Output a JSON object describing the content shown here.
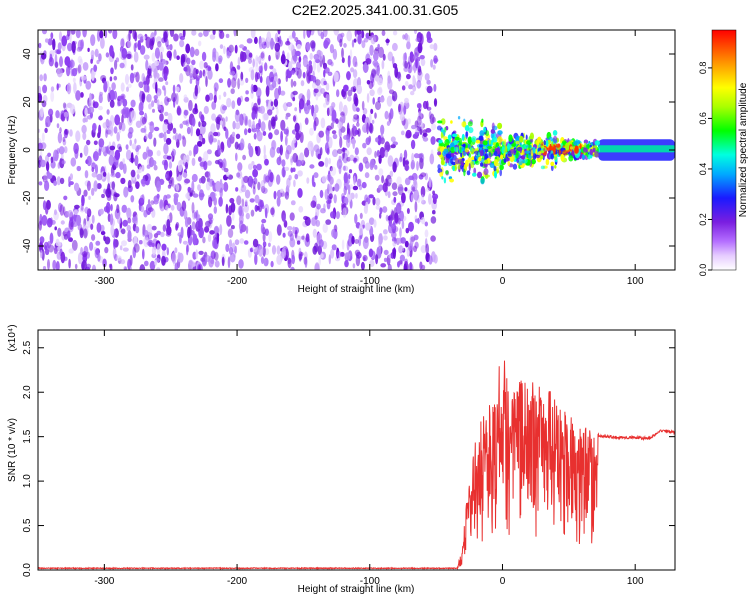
{
  "title": "C2E2.2025.341.00.31.G05",
  "colors": {
    "spectrogram_point": "#7a1ee0",
    "snr_line": "#e8302f",
    "axis": "#000000"
  },
  "chart_data": [
    {
      "type": "heatmap",
      "xlabel": "Height of straight line (km)",
      "ylabel": "Frequency (Hz)",
      "xlim": [
        -350,
        130
      ],
      "ylim": [
        -50,
        50
      ],
      "xticks": [
        -300,
        -200,
        -100,
        0,
        100
      ],
      "yticks": [
        -40,
        -20,
        0,
        20,
        40
      ],
      "colorbar": {
        "label": "Normalized spectral amplitude",
        "range": [
          0,
          0.95
        ],
        "ticks": [
          0.0,
          0.2,
          0.4,
          0.6,
          0.8
        ],
        "colormap": "rainbow (white → magenta → blue → cyan → green → yellow → red)"
      },
      "features": [
        {
          "name": "noise",
          "x_range": [
            -350,
            -50
          ],
          "y_range": [
            -50,
            50
          ],
          "amplitude": "~0.1"
        },
        {
          "name": "signal",
          "x_range": [
            -48,
            130
          ],
          "center_frequency": 0,
          "amplitude_range": [
            0.1,
            0.9
          ],
          "peak_x": 45
        }
      ],
      "grid": false
    },
    {
      "type": "line",
      "xlabel": "Height of straight line (km)",
      "ylabel": "SNR (10 * v/v)",
      "y_scale_label": "(x10⁴)",
      "xlim": [
        -350,
        130
      ],
      "ylim": [
        0,
        2.7
      ],
      "xticks": [
        -300,
        -200,
        -100,
        0,
        100
      ],
      "yticks": [
        0.0,
        0.5,
        1.0,
        1.5,
        2.0,
        2.5
      ],
      "series": [
        {
          "x": [
            -350,
            -34,
            -30,
            -26,
            -20,
            -15,
            -10,
            -5,
            0,
            5,
            10,
            15,
            20,
            25,
            30,
            35,
            40,
            45,
            50,
            55,
            60,
            65,
            70,
            72,
            75,
            80,
            90,
            100,
            110,
            120,
            125,
            130
          ],
          "y": [
            0.02,
            0.02,
            0.3,
            0.95,
            1.5,
            1.75,
            1.9,
            2.1,
            2.5,
            2.2,
            2.0,
            2.3,
            2.1,
            2.15,
            2.05,
            2.05,
            1.9,
            1.85,
            1.8,
            1.7,
            1.65,
            1.6,
            1.55,
            1.52,
            1.5,
            1.5,
            1.49,
            1.49,
            1.48,
            1.57,
            1.56,
            1.55
          ]
        }
      ],
      "grid": false
    }
  ]
}
